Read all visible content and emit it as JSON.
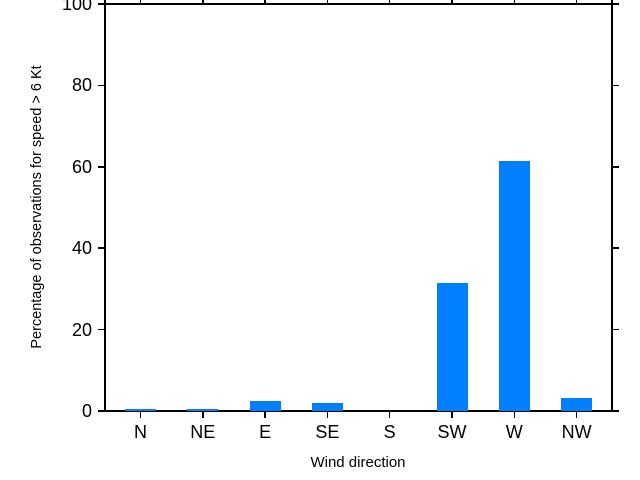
{
  "chart_data": {
    "type": "bar",
    "title": "",
    "xlabel": "Wind direction",
    "ylabel": "Percentage of observations for speed > 6 Kt",
    "categories": [
      "N",
      "NE",
      "E",
      "SE",
      "S",
      "SW",
      "W",
      "NW"
    ],
    "values": [
      0.6,
      0.6,
      2.5,
      1.9,
      0.0,
      31.5,
      61.4,
      3.3
    ],
    "ylim": [
      0,
      100
    ],
    "yticks": [
      0,
      20,
      40,
      60,
      80,
      100
    ],
    "bar_color": "#0080ff",
    "axis_color": "#000000",
    "grid": false,
    "legend": null
  }
}
